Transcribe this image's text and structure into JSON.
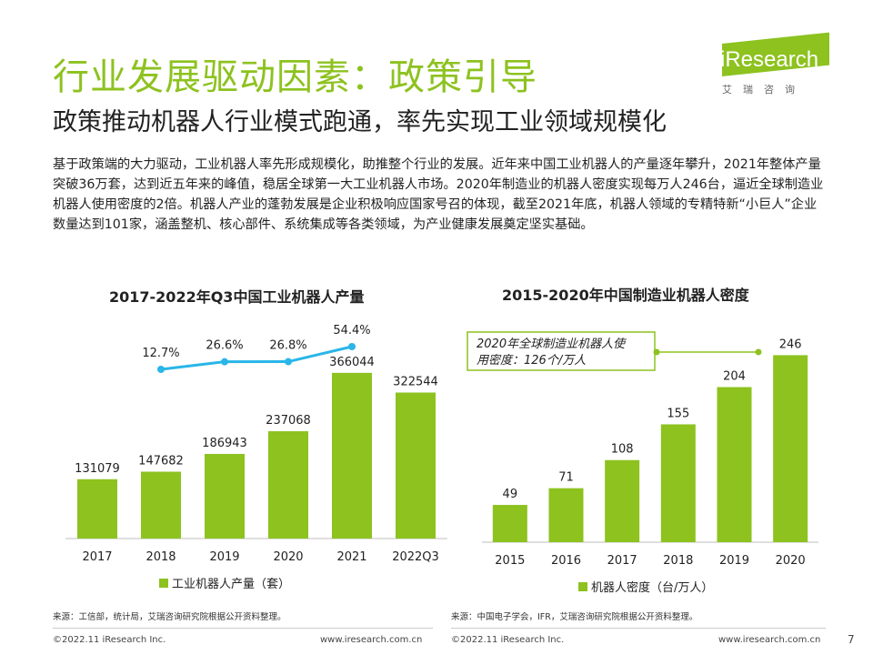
{
  "title": "行业发展驱动因素：政策引导",
  "subtitle": "政策推动机器人行业模式跑通，率先实现工业领域规模化",
  "body": "基于政策端的大力驱动，工业机器人率先形成规模化，助推整个行业的发展。近年来中国工业机器人的产量逐年攀升，2021年整体产量突破36万套，达到近五年来的峰值，稳居全球第一大工业机器人市场。2020年制造业的机器人密度实现每万人246台，逼近全球制造业机器人使用密度的2倍。机器人产业的蓬勃发展是企业积极响应国家号召的体现，截至2021年底，机器人领域的专精特新“小巨人”企业数量达到101家，涵盖整机、核心部件、系统集成等各类领域，为产业健康发展奠定坚实基础。",
  "logo": {
    "text": "iResearch",
    "sub": "艾瑞咨询"
  },
  "colors": {
    "accent": "#8dc21f",
    "line": "#29b6e8",
    "text": "#222222"
  },
  "chart_data": [
    {
      "type": "bar",
      "title": "2017-2022年Q3中国工业机器人产量",
      "categories": [
        "2017",
        "2018",
        "2019",
        "2020",
        "2021",
        "2022Q3"
      ],
      "series": [
        {
          "name": "工业机器人产量（套）",
          "values": [
            131079,
            147682,
            186943,
            237068,
            366044,
            322544
          ]
        }
      ],
      "growth_line": {
        "categories": [
          "2018",
          "2019",
          "2020",
          "2021"
        ],
        "labels": [
          "12.7%",
          "26.6%",
          "26.8%",
          "54.4%"
        ],
        "values": [
          12.7,
          26.6,
          26.8,
          54.4
        ]
      },
      "ylim": [
        0,
        420000
      ],
      "legend": "bottom",
      "source": "来源：工信部，统计局，艾瑞咨询研究院根据公开资料整理。"
    },
    {
      "type": "bar",
      "title": "2015-2020年中国制造业机器人密度",
      "categories": [
        "2015",
        "2016",
        "2017",
        "2018",
        "2019",
        "2020"
      ],
      "series": [
        {
          "name": "机器人密度（台/万人）",
          "values": [
            49,
            71,
            108,
            155,
            204,
            246
          ]
        }
      ],
      "annotation": "2020年全球制造业机器人使用密度：126个/万人",
      "ylim": [
        0,
        280
      ],
      "legend": "bottom",
      "source": "来源：中国电子学会，IFR，艾瑞咨询研究院根据公开资料整理。"
    }
  ],
  "footer": {
    "left1": "©2022.11 iResearch Inc.",
    "url1": "www.iresearch.com.cn",
    "left2": "©2022.11 iResearch Inc.",
    "url2": "www.iresearch.com.cn",
    "page": "7"
  }
}
